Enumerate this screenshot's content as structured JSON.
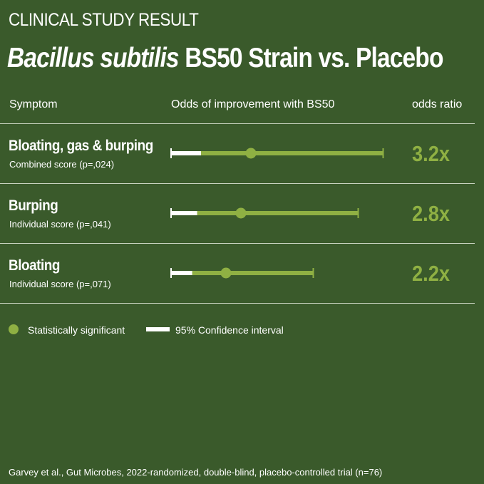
{
  "header": {
    "eyebrow": "CLINICAL STUDY RESULT",
    "title_italic": "Bacillus subtilis",
    "title_rest": " BS50 Strain vs. Placebo"
  },
  "columns": {
    "symptom": "Symptom",
    "odds": "Odds of improvement with BS50",
    "ratio": "odds ratio"
  },
  "legend": {
    "significant": "Statistically significant",
    "ci": "95% Confidence interval"
  },
  "footer": "Garvey et al., Gut Microbes, 2022-randomized, double-blind, placebo-controlled trial (n=76)",
  "colors": {
    "background": "#3a5a2b",
    "accent": "#8fb043",
    "ci_low": "#ffffff"
  },
  "chart_data": {
    "type": "forest",
    "xlim": [
      0,
      10
    ],
    "reference_value": 1,
    "rows": [
      {
        "name": "Bloating, gas & burping",
        "sub": "Combined score (p=,024)",
        "ratio_label": "3.2x",
        "odds_ratio": 3.2,
        "ci_low": 1.2,
        "ci_high": 8.5
      },
      {
        "name": "Burping",
        "sub": "Individual score (p=,041)",
        "ratio_label": "2.8x",
        "odds_ratio": 2.8,
        "ci_low": 1.05,
        "ci_high": 7.5
      },
      {
        "name": "Bloating",
        "sub": "Individual score (p=,071)",
        "ratio_label": "2.2x",
        "odds_ratio": 2.2,
        "ci_low": 0.85,
        "ci_high": 5.7
      }
    ]
  }
}
